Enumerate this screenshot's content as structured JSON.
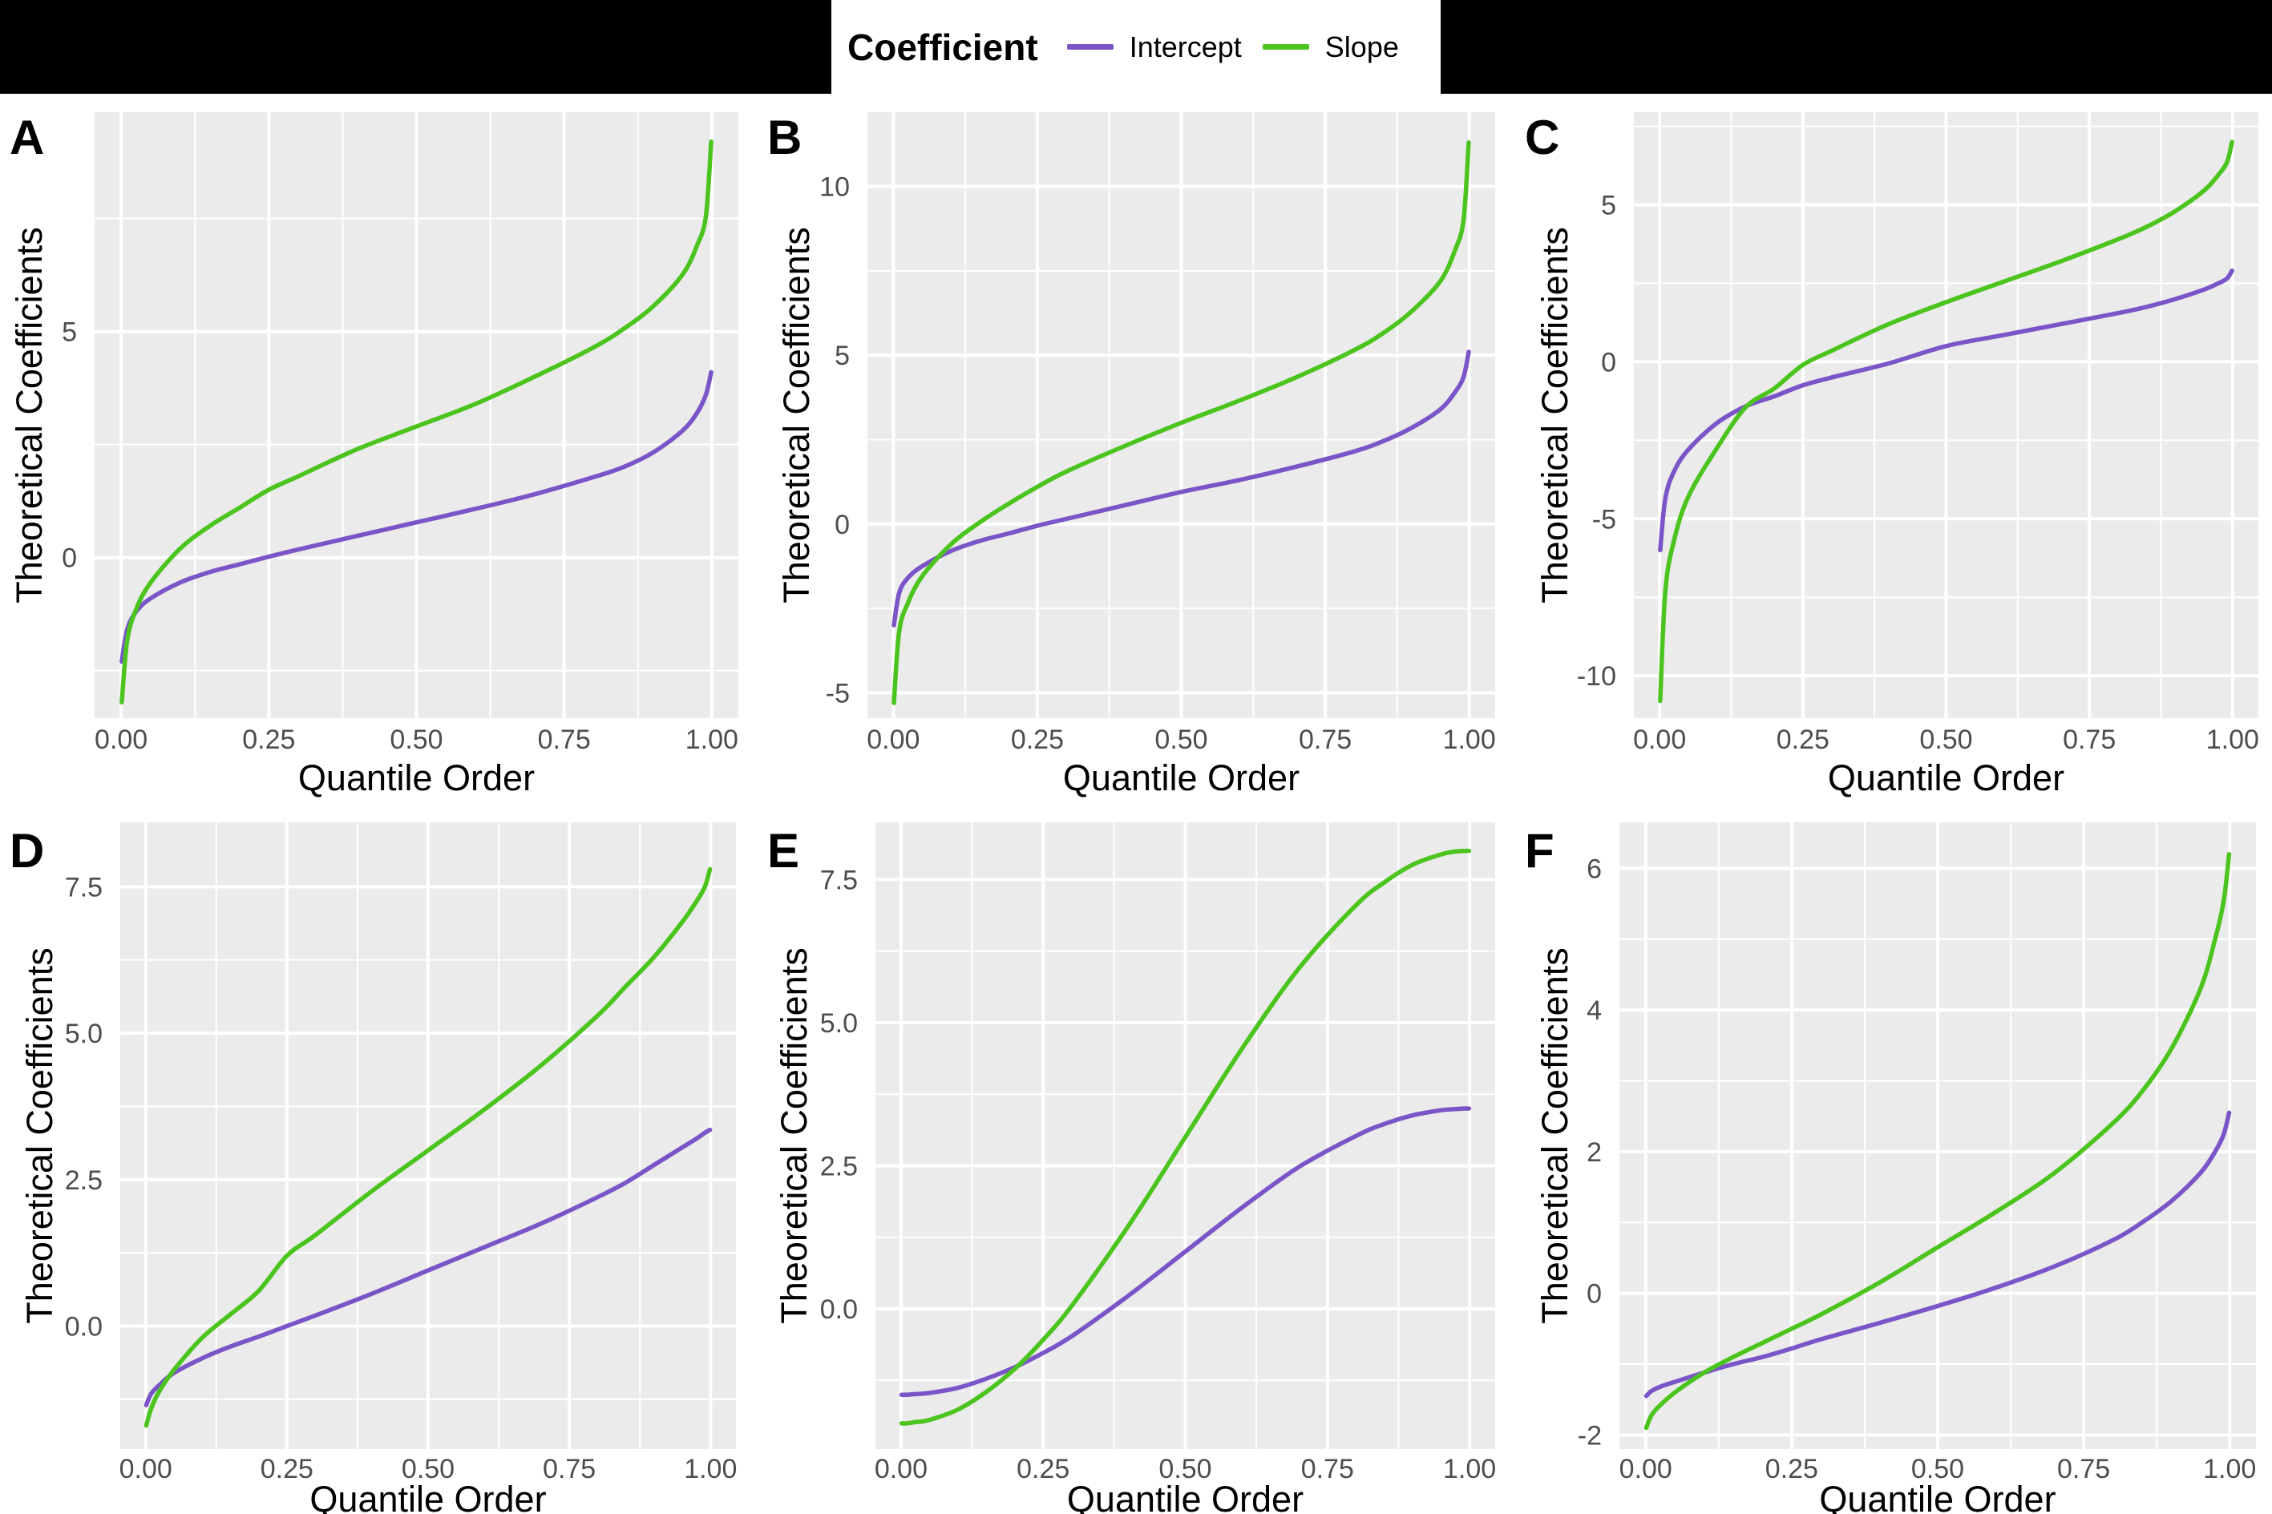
{
  "page": {
    "background": "#ffffff",
    "topbar_color": "#000000",
    "panel_bg": "#EBEBEB",
    "grid_color": "#FFFFFF",
    "tick_label_color": "#4D4D4D",
    "text_color": "#000000"
  },
  "legend": {
    "title": "Coefficient",
    "items": [
      {
        "label": "Intercept",
        "color": "#7B55C8"
      },
      {
        "label": "Slope",
        "color": "#4BC41E"
      }
    ]
  },
  "axes": {
    "x_title": "Quantile Order",
    "y_title": "Theoretical Coefficients",
    "x_ticks": [
      {
        "v": 0.0,
        "label": "0.00"
      },
      {
        "v": 0.25,
        "label": "0.25"
      },
      {
        "v": 0.5,
        "label": "0.50"
      },
      {
        "v": 0.75,
        "label": "0.75"
      },
      {
        "v": 1.0,
        "label": "1.00"
      }
    ],
    "x_minor": [
      0.125,
      0.375,
      0.625,
      0.875
    ],
    "xlim": [
      -0.045,
      1.045
    ],
    "quantiles": [
      0.001,
      0.01,
      0.025,
      0.05,
      0.1,
      0.15,
      0.2,
      0.25,
      0.3,
      0.4,
      0.5,
      0.6,
      0.7,
      0.8,
      0.85,
      0.9,
      0.95,
      0.975,
      0.99,
      0.999
    ]
  },
  "chart_data": [
    {
      "panel": "A",
      "type": "line",
      "grid": true,
      "xlabel": "Quantile Order",
      "ylabel": "Theoretical Coefficients",
      "ylim": [
        -3.55,
        9.85
      ],
      "y_ticks": [
        {
          "v": 0,
          "label": "0"
        },
        {
          "v": 5,
          "label": "5"
        }
      ],
      "y_minor": [
        -2.5,
        2.5,
        7.5
      ],
      "series": [
        {
          "name": "Intercept",
          "values": [
            -2.3,
            -1.6,
            -1.2,
            -0.9,
            -0.55,
            -0.32,
            -0.15,
            0.02,
            0.18,
            0.48,
            0.78,
            1.08,
            1.4,
            1.78,
            2.0,
            2.32,
            2.8,
            3.2,
            3.6,
            4.1
          ]
        },
        {
          "name": "Slope",
          "values": [
            -3.2,
            -1.85,
            -1.15,
            -0.55,
            0.2,
            0.7,
            1.1,
            1.5,
            1.8,
            2.4,
            2.9,
            3.4,
            4.0,
            4.65,
            5.05,
            5.55,
            6.25,
            6.9,
            7.55,
            9.2
          ]
        }
      ]
    },
    {
      "panel": "B",
      "type": "line",
      "grid": true,
      "xlabel": "Quantile Order",
      "ylabel": "Theoretical Coefficients",
      "ylim": [
        -5.75,
        12.2
      ],
      "y_ticks": [
        {
          "v": -5,
          "label": "-5"
        },
        {
          "v": 0,
          "label": "0"
        },
        {
          "v": 5,
          "label": "5"
        },
        {
          "v": 10,
          "label": "10"
        }
      ],
      "y_minor": [
        -2.5,
        2.5,
        7.5
      ],
      "series": [
        {
          "name": "Intercept",
          "values": [
            -3.0,
            -2.05,
            -1.6,
            -1.25,
            -0.8,
            -0.5,
            -0.28,
            -0.05,
            0.15,
            0.55,
            0.95,
            1.3,
            1.7,
            2.15,
            2.45,
            2.85,
            3.4,
            3.9,
            4.35,
            5.1
          ]
        },
        {
          "name": "Slope",
          "values": [
            -5.3,
            -3.2,
            -2.35,
            -1.55,
            -0.6,
            0.05,
            0.6,
            1.1,
            1.55,
            2.3,
            3.0,
            3.65,
            4.35,
            5.15,
            5.65,
            6.3,
            7.2,
            8.1,
            9.0,
            11.3
          ]
        }
      ]
    },
    {
      "panel": "C",
      "type": "line",
      "grid": true,
      "xlabel": "Quantile Order",
      "ylabel": "Theoretical Coefficients",
      "ylim": [
        -11.35,
        7.95
      ],
      "y_ticks": [
        {
          "v": -10,
          "label": "-10"
        },
        {
          "v": -5,
          "label": "-5"
        },
        {
          "v": 0,
          "label": "0"
        },
        {
          "v": 5,
          "label": "5"
        }
      ],
      "y_minor": [
        -7.5,
        -2.5,
        2.5,
        7.5
      ],
      "series": [
        {
          "name": "Intercept",
          "values": [
            -6.0,
            -4.35,
            -3.5,
            -2.8,
            -1.95,
            -1.42,
            -1.1,
            -0.75,
            -0.5,
            -0.05,
            0.5,
            0.85,
            1.2,
            1.55,
            1.75,
            2.0,
            2.3,
            2.5,
            2.65,
            2.9
          ]
        },
        {
          "name": "Slope",
          "values": [
            -10.8,
            -7.3,
            -5.7,
            -4.3,
            -2.75,
            -1.45,
            -0.85,
            -0.1,
            0.35,
            1.2,
            1.9,
            2.55,
            3.2,
            3.9,
            4.3,
            4.8,
            5.45,
            5.95,
            6.35,
            7.0
          ]
        }
      ]
    },
    {
      "panel": "D",
      "type": "line",
      "grid": true,
      "xlabel": "Quantile Order",
      "ylabel": "Theoretical Coefficients",
      "ylim": [
        -2.1,
        8.6
      ],
      "y_ticks": [
        {
          "v": 0,
          "label": "0.0"
        },
        {
          "v": 2.5,
          "label": "2.5"
        },
        {
          "v": 5,
          "label": "5.0"
        },
        {
          "v": 7.5,
          "label": "7.5"
        }
      ],
      "y_minor": [
        -1.25,
        1.25,
        3.75,
        6.25
      ],
      "series": [
        {
          "name": "Intercept",
          "values": [
            -1.35,
            -1.15,
            -1.0,
            -0.8,
            -0.55,
            -0.35,
            -0.18,
            0.0,
            0.18,
            0.55,
            0.95,
            1.35,
            1.75,
            2.2,
            2.45,
            2.75,
            3.05,
            3.2,
            3.3,
            3.35
          ]
        },
        {
          "name": "Slope",
          "values": [
            -1.7,
            -1.4,
            -1.1,
            -0.75,
            -0.2,
            0.2,
            0.6,
            1.2,
            1.55,
            2.3,
            3.0,
            3.7,
            4.45,
            5.3,
            5.8,
            6.3,
            6.9,
            7.25,
            7.5,
            7.8
          ]
        }
      ]
    },
    {
      "panel": "E",
      "type": "line",
      "grid": true,
      "xlabel": "Quantile Order",
      "ylabel": "Theoretical Coefficients",
      "ylim": [
        -2.45,
        8.5
      ],
      "y_ticks": [
        {
          "v": 0,
          "label": "0.0"
        },
        {
          "v": 2.5,
          "label": "2.5"
        },
        {
          "v": 5,
          "label": "5.0"
        },
        {
          "v": 7.5,
          "label": "7.5"
        }
      ],
      "y_minor": [
        -1.25,
        1.25,
        3.75,
        6.25
      ],
      "series": [
        {
          "name": "Intercept",
          "values": [
            -1.5,
            -1.5,
            -1.49,
            -1.47,
            -1.38,
            -1.22,
            -1.02,
            -0.77,
            -0.48,
            0.23,
            1.0,
            1.77,
            2.48,
            3.02,
            3.23,
            3.38,
            3.47,
            3.49,
            3.5,
            3.5
          ]
        },
        {
          "name": "Slope",
          "values": [
            -2.0,
            -2.0,
            -1.98,
            -1.94,
            -1.76,
            -1.45,
            -1.05,
            -0.54,
            0.05,
            1.45,
            3.0,
            4.55,
            5.95,
            7.05,
            7.45,
            7.76,
            7.94,
            7.99,
            8.0,
            8.0
          ]
        }
      ]
    },
    {
      "panel": "F",
      "type": "line",
      "grid": true,
      "xlabel": "Quantile Order",
      "ylabel": "Theoretical Coefficients",
      "ylim": [
        -2.2,
        6.65
      ],
      "y_ticks": [
        {
          "v": -2,
          "label": "-2"
        },
        {
          "v": 0,
          "label": "0"
        },
        {
          "v": 2,
          "label": "2"
        },
        {
          "v": 4,
          "label": "4"
        },
        {
          "v": 6,
          "label": "6"
        }
      ],
      "y_minor": [
        -1,
        1,
        3,
        5
      ],
      "series": [
        {
          "name": "Intercept",
          "values": [
            -1.45,
            -1.38,
            -1.32,
            -1.25,
            -1.12,
            -1.0,
            -0.9,
            -0.78,
            -0.65,
            -0.42,
            -0.18,
            0.08,
            0.38,
            0.75,
            1.0,
            1.3,
            1.7,
            2.0,
            2.25,
            2.55
          ]
        },
        {
          "name": "Slope",
          "values": [
            -1.9,
            -1.72,
            -1.58,
            -1.4,
            -1.12,
            -0.9,
            -0.7,
            -0.5,
            -0.3,
            0.15,
            0.65,
            1.15,
            1.7,
            2.4,
            2.85,
            3.45,
            4.3,
            5.0,
            5.55,
            6.2
          ]
        }
      ]
    }
  ]
}
